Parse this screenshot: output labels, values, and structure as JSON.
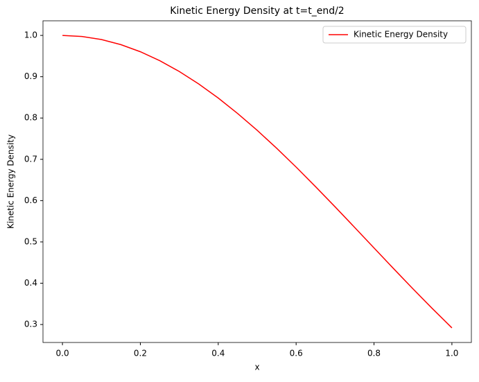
{
  "chart_data": {
    "type": "line",
    "title": "Kinetic Energy Density at t=t_end/2",
    "x_label": "x",
    "y_label": "Kinetic Energy Density",
    "x": [
      0,
      0.05,
      0.1,
      0.15,
      0.2,
      0.25,
      0.3,
      0.35,
      0.4,
      0.45,
      0.5,
      0.55,
      0.6,
      0.65,
      0.7,
      0.75,
      0.8,
      0.85,
      0.9,
      0.95,
      1.0
    ],
    "series": [
      {
        "name": "Kinetic Energy Density",
        "color": "#ff0000",
        "values": [
          1.0,
          0.9975,
          0.99,
          0.9777,
          0.9605,
          0.9388,
          0.9127,
          0.8824,
          0.8484,
          0.8108,
          0.7702,
          0.7268,
          0.6812,
          0.6337,
          0.585,
          0.5354,
          0.4854,
          0.4356,
          0.3864,
          0.3384,
          0.2919
        ]
      }
    ],
    "xlim": [
      -0.05,
      1.05
    ],
    "xticks": [
      {
        "value": 0,
        "label": "0.0"
      },
      0.2,
      0.4,
      0.6,
      0.8,
      {
        "value": 1,
        "label": "1.0"
      }
    ],
    "ylim": [
      0.2565,
      1.0354
    ],
    "yticks": [
      0.3,
      0.4,
      0.5,
      0.6,
      0.7,
      0.8,
      0.9,
      {
        "value": 1,
        "label": "1.0"
      }
    ],
    "grid": false,
    "legend": "upper right"
  }
}
